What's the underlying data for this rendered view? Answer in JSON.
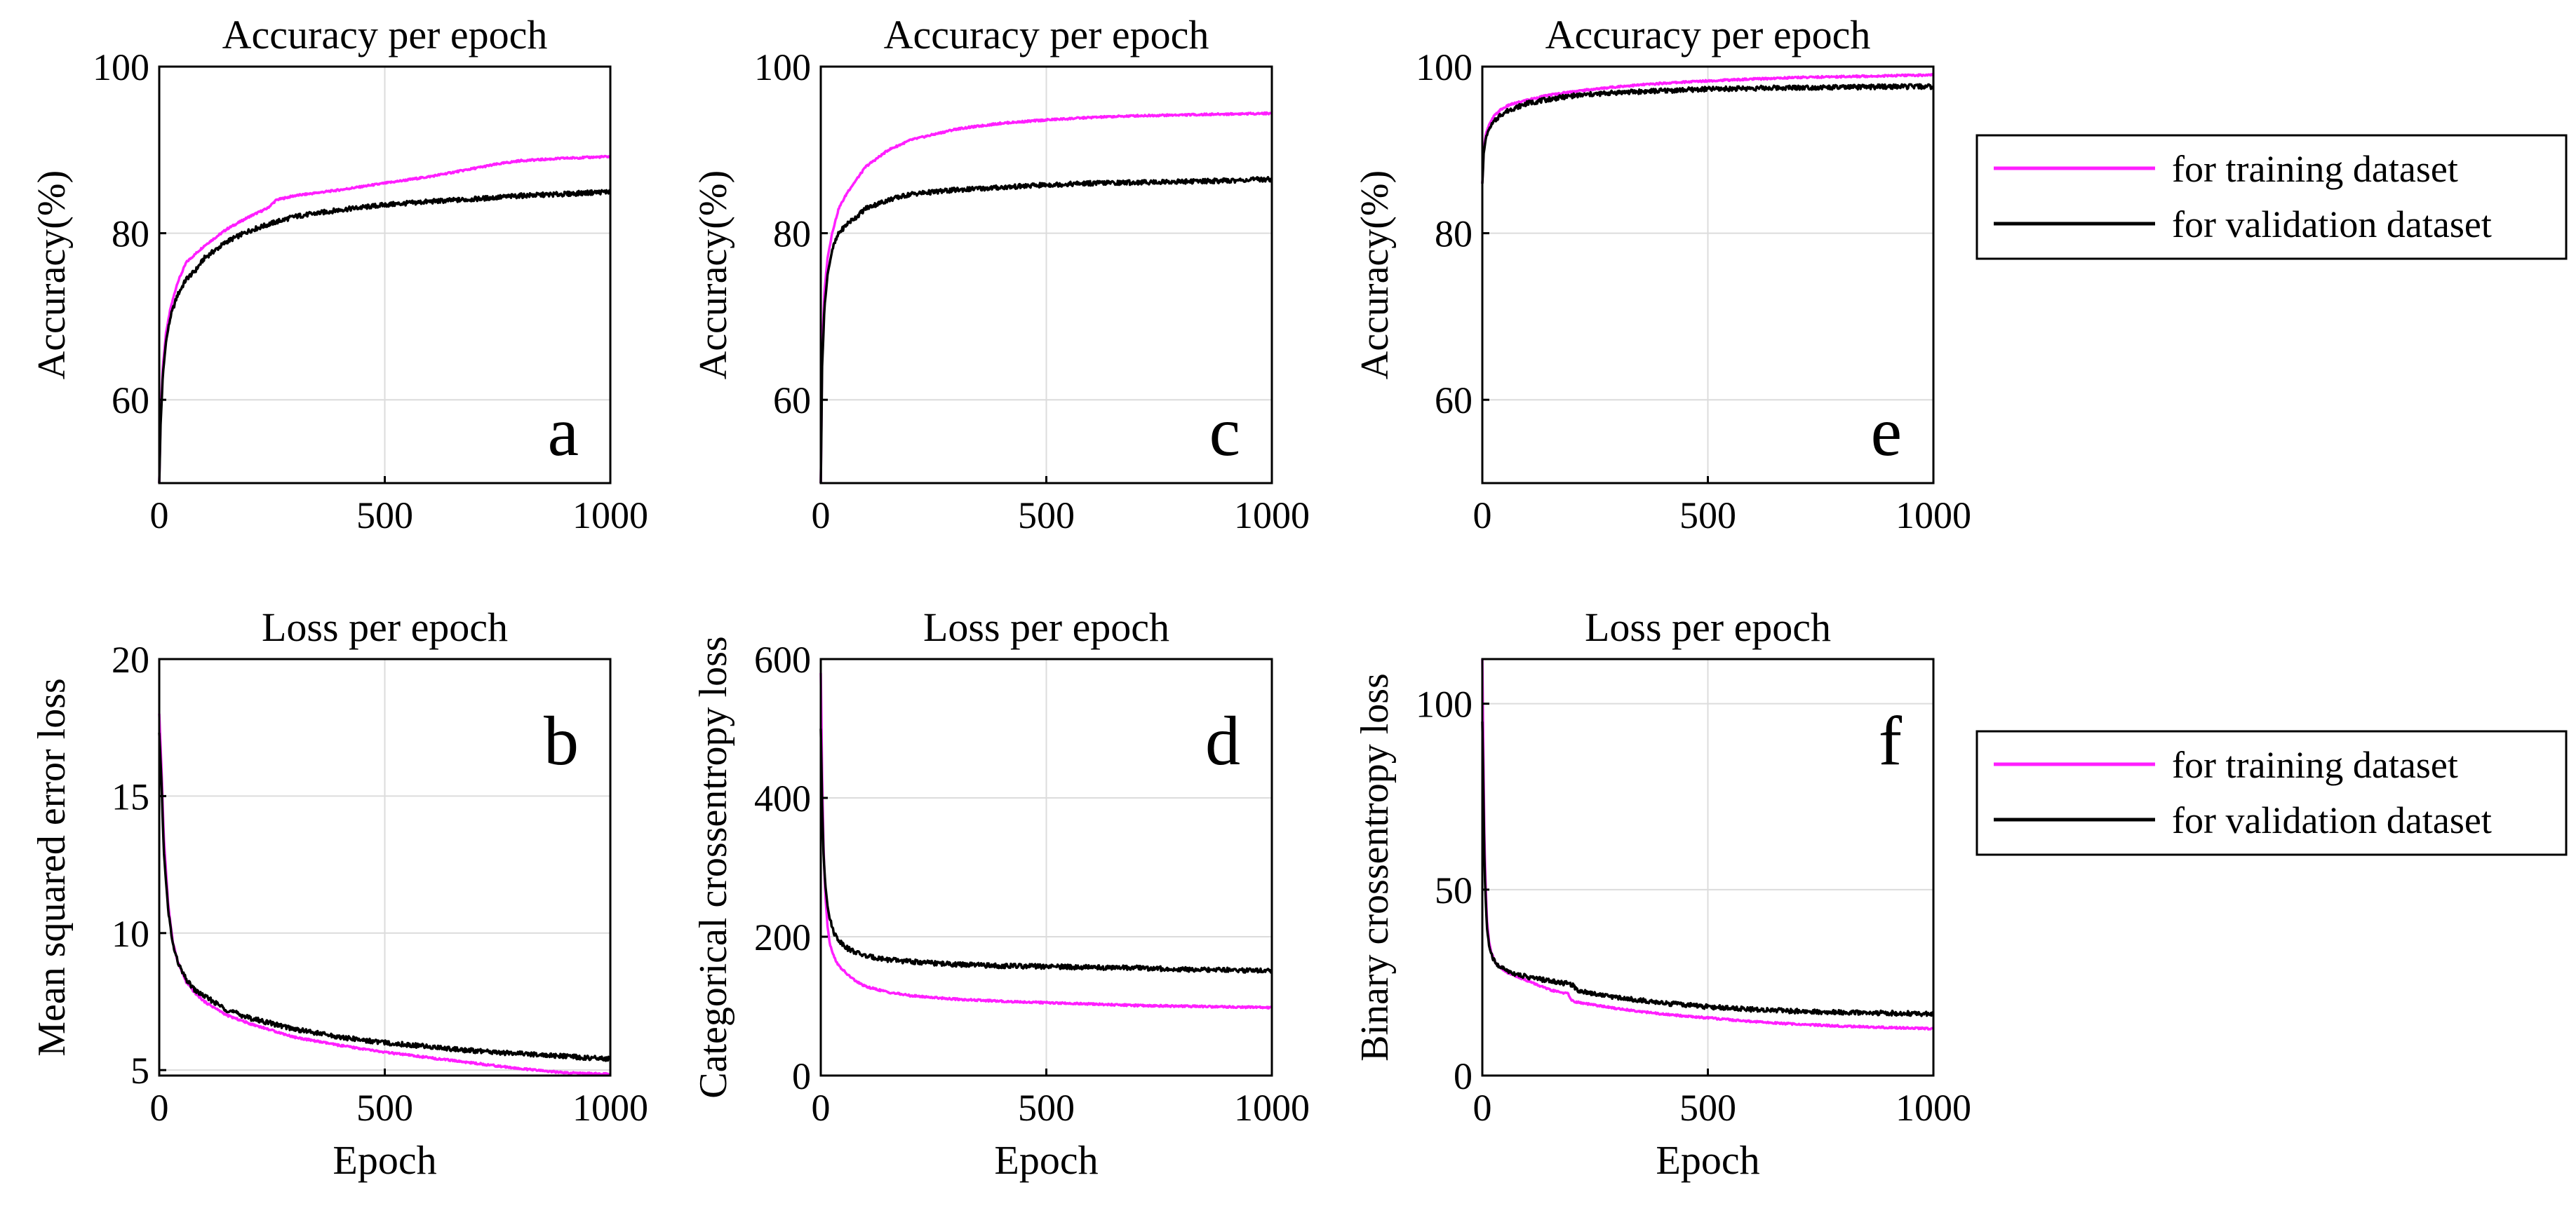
{
  "colors": {
    "training": "#ff1fff",
    "validation": "#000000",
    "grid": "#dcdcdc"
  },
  "legend": [
    {
      "label": "for training dataset",
      "color": "#ff1fff"
    },
    {
      "label": "for validation dataset",
      "color": "#000000"
    }
  ],
  "chart_data": [
    {
      "id": "a",
      "type": "line",
      "letter": "a",
      "title": "Accuracy per epoch",
      "xlabel": "",
      "ylabel": "Accuracy(%)",
      "xlim": [
        0,
        1000
      ],
      "ylim": [
        50,
        100
      ],
      "xticks": [
        0,
        500,
        1000
      ],
      "yticks": [
        60,
        80,
        100
      ],
      "ytick_labels": [
        "60",
        "80",
        "100"
      ],
      "grid": true,
      "series": [
        {
          "name": "for training dataset",
          "color": "#ff1fff",
          "x": [
            0,
            3,
            8,
            15,
            25,
            40,
            60,
            80,
            100,
            150,
            200,
            240,
            260,
            300,
            400,
            500,
            600,
            700,
            750,
            800,
            900,
            1000
          ],
          "y": [
            50,
            58,
            64,
            68,
            71,
            74,
            76.5,
            77.5,
            78.5,
            80.5,
            82,
            83,
            84,
            84.5,
            85.2,
            86,
            86.8,
            87.8,
            88.3,
            88.7,
            89,
            89.2
          ]
        },
        {
          "name": "for validation dataset",
          "color": "#000000",
          "x": [
            0,
            3,
            8,
            15,
            25,
            40,
            60,
            80,
            100,
            150,
            200,
            250,
            300,
            400,
            500,
            600,
            700,
            800,
            900,
            1000
          ],
          "y": [
            50,
            57,
            63,
            67,
            70,
            72.5,
            74.5,
            75.5,
            77,
            79,
            80.3,
            81.2,
            82,
            82.8,
            83.4,
            83.8,
            84.1,
            84.5,
            84.7,
            85
          ]
        }
      ]
    },
    {
      "id": "c",
      "type": "line",
      "letter": "c",
      "title": "Accuracy per epoch",
      "xlabel": "",
      "ylabel": "Accuracy(%)",
      "xlim": [
        0,
        1000
      ],
      "ylim": [
        50,
        100
      ],
      "xticks": [
        0,
        500,
        1000
      ],
      "yticks": [
        60,
        80,
        100
      ],
      "ytick_labels": [
        "60",
        "80",
        "100"
      ],
      "grid": true,
      "series": [
        {
          "name": "for training dataset",
          "color": "#ff1fff",
          "x": [
            0,
            3,
            8,
            15,
            25,
            40,
            60,
            80,
            100,
            150,
            200,
            300,
            400,
            500,
            600,
            700,
            800,
            900,
            1000
          ],
          "y": [
            50,
            66,
            73,
            77,
            80,
            83,
            85,
            86.5,
            88,
            90,
            91.2,
            92.5,
            93.2,
            93.6,
            93.9,
            94.1,
            94.2,
            94.3,
            94.4
          ]
        },
        {
          "name": "for validation dataset",
          "color": "#000000",
          "x": [
            0,
            3,
            8,
            15,
            25,
            40,
            60,
            80,
            100,
            150,
            200,
            300,
            400,
            500,
            600,
            700,
            800,
            900,
            1000
          ],
          "y": [
            50,
            64,
            71,
            75,
            78,
            80,
            81.2,
            82,
            83,
            84,
            84.7,
            85.2,
            85.5,
            85.8,
            86,
            86.1,
            86.2,
            86.3,
            86.5
          ]
        }
      ]
    },
    {
      "id": "e",
      "type": "line",
      "letter": "e",
      "title": "Accuracy per epoch",
      "xlabel": "",
      "ylabel": "Accuracy(%)",
      "xlim": [
        0,
        1000
      ],
      "ylim": [
        50,
        100
      ],
      "xticks": [
        0,
        500,
        1000
      ],
      "yticks": [
        60,
        80,
        100
      ],
      "ytick_labels": [
        "60",
        "80",
        "100"
      ],
      "grid": true,
      "series": [
        {
          "name": "for training dataset",
          "color": "#ff1fff",
          "x": [
            0,
            3,
            8,
            15,
            25,
            40,
            60,
            100,
            150,
            200,
            300,
            400,
            500,
            600,
            700,
            800,
            900,
            1000
          ],
          "y": [
            86,
            90,
            92,
            93,
            94,
            94.8,
            95.4,
            96,
            96.6,
            97,
            97.6,
            98,
            98.3,
            98.5,
            98.7,
            98.8,
            98.9,
            99
          ]
        },
        {
          "name": "for validation dataset",
          "color": "#000000",
          "x": [
            0,
            3,
            8,
            15,
            25,
            40,
            60,
            100,
            150,
            200,
            300,
            400,
            500,
            600,
            700,
            800,
            900,
            1000
          ],
          "y": [
            86,
            89.5,
            91.5,
            92.5,
            93.3,
            94.2,
            94.8,
            95.6,
            96.1,
            96.5,
            96.9,
            97.1,
            97.3,
            97.4,
            97.5,
            97.5,
            97.6,
            97.6
          ]
        }
      ]
    },
    {
      "id": "b",
      "type": "line",
      "letter": "b",
      "title": "Loss per epoch",
      "xlabel": "Epoch",
      "ylabel": "Mean squared error loss",
      "xlim": [
        0,
        1000
      ],
      "ylim": [
        4.8,
        20
      ],
      "xticks": [
        0,
        500,
        1000
      ],
      "yticks": [
        5,
        10,
        15,
        20
      ],
      "ytick_labels": [
        "5",
        "10",
        "15",
        "20"
      ],
      "grid": true,
      "series": [
        {
          "name": "for training dataset",
          "color": "#ff1fff",
          "x": [
            0,
            5,
            10,
            20,
            30,
            40,
            50,
            60,
            80,
            100,
            150,
            200,
            300,
            400,
            500,
            600,
            700,
            800,
            900,
            1000
          ],
          "y": [
            18,
            16,
            13.5,
            11,
            9.7,
            9,
            8.6,
            8.2,
            7.8,
            7.5,
            7,
            6.7,
            6.2,
            5.9,
            5.65,
            5.45,
            5.25,
            5.05,
            4.9,
            4.85
          ]
        },
        {
          "name": "for validation dataset",
          "color": "#000000",
          "x": [
            0,
            5,
            10,
            20,
            30,
            40,
            50,
            60,
            80,
            100,
            150,
            200,
            300,
            400,
            500,
            600,
            700,
            800,
            900,
            1000
          ],
          "y": [
            17.3,
            15.5,
            13,
            10.8,
            9.6,
            9,
            8.6,
            8.3,
            7.9,
            7.7,
            7.2,
            6.9,
            6.5,
            6.2,
            6,
            5.85,
            5.7,
            5.6,
            5.5,
            5.4
          ]
        }
      ]
    },
    {
      "id": "d",
      "type": "line",
      "letter": "d",
      "title": "Loss per epoch",
      "xlabel": "Epoch",
      "ylabel": "Categorical crossentropy loss",
      "xlim": [
        0,
        1000
      ],
      "ylim": [
        0,
        600
      ],
      "xticks": [
        0,
        500,
        1000
      ],
      "yticks": [
        0,
        200,
        400,
        600
      ],
      "ytick_labels": [
        "0",
        "200",
        "400",
        "600"
      ],
      "grid": true,
      "series": [
        {
          "name": "for training dataset",
          "color": "#ff1fff",
          "x": [
            0,
            3,
            6,
            10,
            15,
            20,
            30,
            40,
            60,
            80,
            100,
            150,
            200,
            300,
            400,
            500,
            600,
            700,
            800,
            900,
            1000
          ],
          "y": [
            580,
            430,
            330,
            260,
            215,
            190,
            170,
            158,
            145,
            135,
            128,
            120,
            115,
            110,
            107,
            105,
            103,
            101,
            100,
            99,
            98
          ]
        },
        {
          "name": "for validation dataset",
          "color": "#000000",
          "x": [
            0,
            3,
            6,
            10,
            15,
            20,
            30,
            40,
            60,
            80,
            100,
            150,
            200,
            300,
            400,
            500,
            600,
            700,
            800,
            900,
            1000
          ],
          "y": [
            500,
            390,
            320,
            275,
            245,
            225,
            205,
            195,
            183,
            177,
            172,
            167,
            164,
            160,
            158,
            157,
            156,
            155,
            153,
            152,
            151
          ]
        }
      ]
    },
    {
      "id": "f",
      "type": "line",
      "letter": "f",
      "title": "Loss per epoch",
      "xlabel": "Epoch",
      "ylabel": "Binary crossentropy loss",
      "xlim": [
        0,
        1000
      ],
      "ylim": [
        0,
        112
      ],
      "xticks": [
        0,
        500,
        1000
      ],
      "yticks": [
        0,
        50,
        100
      ],
      "ytick_labels": [
        "0",
        "50",
        "100"
      ],
      "grid": true,
      "series": [
        {
          "name": "for training dataset",
          "color": "#ff1fff",
          "x": [
            0,
            2,
            5,
            10,
            15,
            20,
            30,
            50,
            70,
            100,
            150,
            190,
            200,
            220,
            300,
            400,
            500,
            600,
            700,
            800,
            900,
            1000
          ],
          "y": [
            112,
            90,
            60,
            42,
            36,
            33,
            30,
            28,
            27,
            25.5,
            23,
            22,
            20,
            19.5,
            18,
            16.5,
            15.5,
            14.5,
            13.8,
            13.3,
            12.9,
            12.6
          ]
        },
        {
          "name": "for validation dataset",
          "color": "#000000",
          "x": [
            0,
            2,
            5,
            10,
            15,
            20,
            30,
            50,
            70,
            100,
            150,
            200,
            210,
            250,
            300,
            400,
            500,
            600,
            700,
            800,
            900,
            1000
          ],
          "y": [
            95,
            80,
            55,
            40,
            35,
            32.5,
            30,
            28.5,
            27.5,
            26.5,
            25.5,
            24.5,
            23,
            22,
            21,
            19.5,
            18.5,
            17.8,
            17.3,
            17,
            16.8,
            16.6
          ]
        }
      ]
    }
  ]
}
